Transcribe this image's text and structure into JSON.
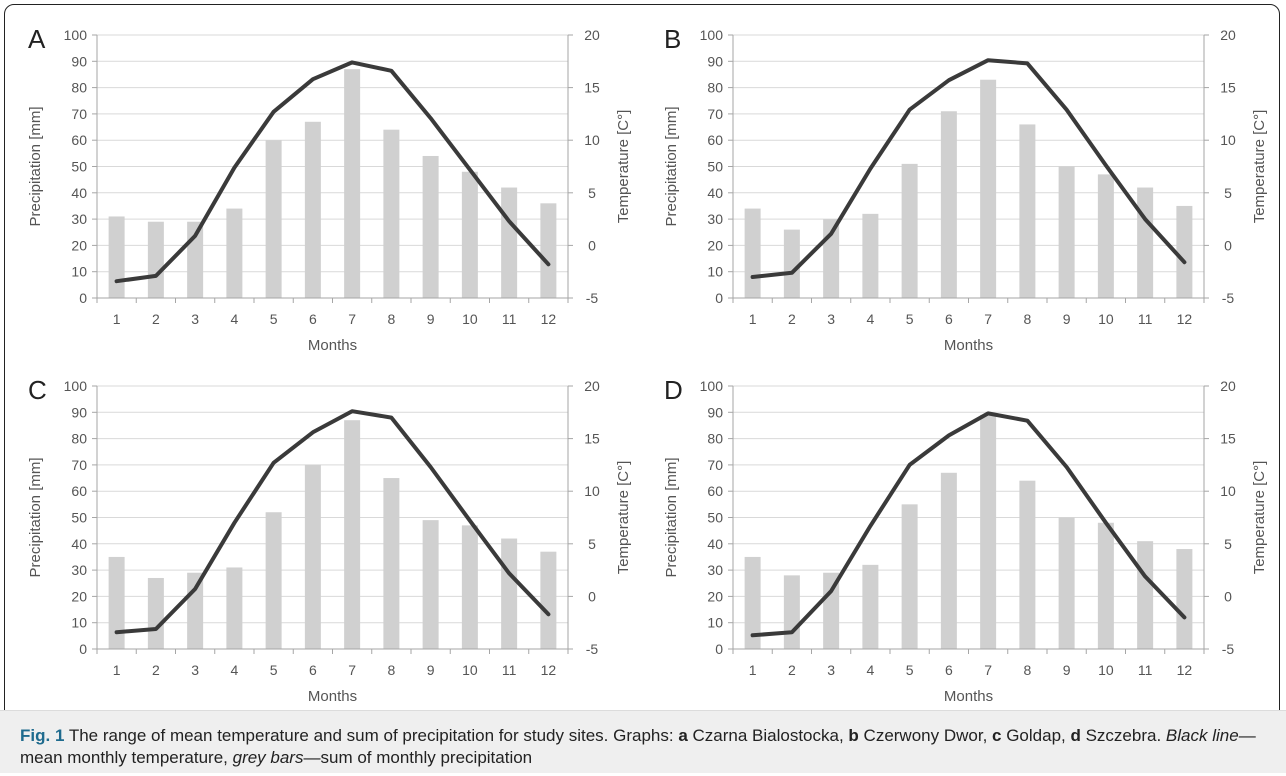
{
  "colors": {
    "bar": "#d0d0d0",
    "line": "#3a3a3a",
    "axis": "#a6a6a6",
    "text": "#555555",
    "caption_label": "#1f6b8e"
  },
  "chart_data": [
    {
      "type": "bar+line",
      "panel_letter": "A",
      "categories": [
        "1",
        "2",
        "3",
        "4",
        "5",
        "6",
        "7",
        "8",
        "9",
        "10",
        "11",
        "12"
      ],
      "series": [
        {
          "kind": "bar",
          "axis": "left",
          "values": [
            31,
            29,
            29,
            34,
            60,
            67,
            87,
            64,
            54,
            48,
            42,
            36
          ]
        },
        {
          "kind": "line",
          "axis": "right",
          "values": [
            -3.4,
            -2.9,
            0.9,
            7.4,
            12.7,
            15.8,
            17.4,
            16.6,
            12.1,
            7.2,
            2.3,
            -1.8
          ]
        }
      ],
      "xlabel": "Months",
      "ylabel": "Precipitation [mm]",
      "y2label": "Temperature [C°]",
      "ylim": [
        0,
        100
      ],
      "y2lim": [
        -5,
        20
      ],
      "yticks": [
        "0",
        "10",
        "20",
        "30",
        "40",
        "50",
        "60",
        "70",
        "80",
        "90",
        "100"
      ],
      "y2ticks": [
        "-5",
        "0",
        "5",
        "10",
        "15",
        "20"
      ],
      "grid": true
    },
    {
      "type": "bar+line",
      "panel_letter": "B",
      "categories": [
        "1",
        "2",
        "3",
        "4",
        "5",
        "6",
        "7",
        "8",
        "9",
        "10",
        "11",
        "12"
      ],
      "series": [
        {
          "kind": "bar",
          "axis": "left",
          "values": [
            34,
            26,
            30,
            32,
            51,
            71,
            83,
            66,
            50,
            47,
            42,
            35
          ]
        },
        {
          "kind": "line",
          "axis": "right",
          "values": [
            -3.0,
            -2.6,
            1.1,
            7.3,
            12.9,
            15.7,
            17.6,
            17.3,
            12.9,
            7.6,
            2.5,
            -1.6
          ]
        }
      ],
      "xlabel": "Months",
      "ylabel": "Precipitation [mm]",
      "y2label": "Temperature [C°]",
      "ylim": [
        0,
        100
      ],
      "y2lim": [
        -5,
        20
      ],
      "yticks": [
        "0",
        "10",
        "20",
        "30",
        "40",
        "50",
        "60",
        "70",
        "80",
        "90",
        "100"
      ],
      "y2ticks": [
        "-5",
        "0",
        "5",
        "10",
        "15",
        "20"
      ],
      "grid": true
    },
    {
      "type": "bar+line",
      "panel_letter": "C",
      "categories": [
        "1",
        "2",
        "3",
        "4",
        "5",
        "6",
        "7",
        "8",
        "9",
        "10",
        "11",
        "12"
      ],
      "series": [
        {
          "kind": "bar",
          "axis": "left",
          "values": [
            35,
            27,
            29,
            31,
            52,
            70,
            87,
            65,
            49,
            47,
            42,
            37
          ]
        },
        {
          "kind": "line",
          "axis": "right",
          "values": [
            -3.4,
            -3.1,
            0.7,
            7.0,
            12.7,
            15.6,
            17.6,
            17.0,
            12.3,
            7.2,
            2.2,
            -1.7
          ]
        }
      ],
      "xlabel": "Months",
      "ylabel": "Precipitation [mm]",
      "y2label": "Temperature [C°]",
      "ylim": [
        0,
        100
      ],
      "y2lim": [
        -5,
        20
      ],
      "yticks": [
        "0",
        "10",
        "20",
        "30",
        "40",
        "50",
        "60",
        "70",
        "80",
        "90",
        "100"
      ],
      "y2ticks": [
        "-5",
        "0",
        "5",
        "10",
        "15",
        "20"
      ],
      "grid": true
    },
    {
      "type": "bar+line",
      "panel_letter": "D",
      "categories": [
        "1",
        "2",
        "3",
        "4",
        "5",
        "6",
        "7",
        "8",
        "9",
        "10",
        "11",
        "12"
      ],
      "series": [
        {
          "kind": "bar",
          "axis": "left",
          "values": [
            35,
            28,
            29,
            32,
            55,
            67,
            89,
            64,
            50,
            48,
            41,
            38
          ]
        },
        {
          "kind": "line",
          "axis": "right",
          "values": [
            -3.7,
            -3.4,
            0.5,
            6.7,
            12.5,
            15.3,
            17.4,
            16.7,
            12.3,
            7.0,
            1.9,
            -2.0
          ]
        }
      ],
      "xlabel": "Months",
      "ylabel": "Precipitation [mm]",
      "y2label": "Temperature [C°]",
      "ylim": [
        0,
        100
      ],
      "y2lim": [
        -5,
        20
      ],
      "yticks": [
        "0",
        "10",
        "20",
        "30",
        "40",
        "50",
        "60",
        "70",
        "80",
        "90",
        "100"
      ],
      "y2ticks": [
        "-5",
        "0",
        "5",
        "10",
        "15",
        "20"
      ],
      "grid": true
    }
  ],
  "caption": {
    "fig_label": "Fig. 1",
    "intro": " The range of mean temperature and sum of precipitation for study sites. Graphs: ",
    "a": "a",
    "a_text": " Czarna Bialostocka, ",
    "b": "b",
    "b_text": " Czerwony Dwor, ",
    "c": "c",
    "c_text": " Goldap, ",
    "d": "d",
    "d_text": " Szczebra. ",
    "black_line": "Black line",
    "black_line_text": "—mean monthly temperature, ",
    "grey_bars": "grey bars",
    "grey_bars_text": "—sum of monthly precipitation"
  }
}
